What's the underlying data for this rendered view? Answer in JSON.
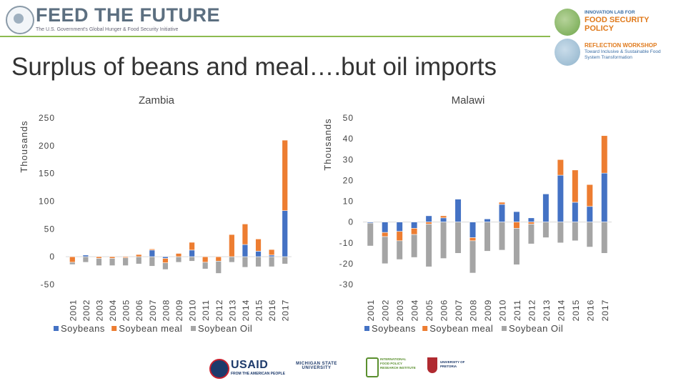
{
  "header": {
    "ftf_brand": "FEED THE FUTURE",
    "ftf_tagline": "The U.S. Government's Global Hunger & Food Security Initiative",
    "lab_line1": "INNOVATION LAB FOR",
    "lab_line2": "FOOD SECURITY POLICY",
    "lab_line3": "REFLECTION WORKSHOP",
    "lab_line4": "Toward Inclusive & Sustainable Food System Transformation"
  },
  "slide": {
    "title": "Surplus of beans and meal….but oil imports"
  },
  "colors": {
    "soybeans": "#4472C4",
    "soybean_meal": "#ED7D31",
    "soybean_oil": "#A5A5A5",
    "accent_green": "#8DBB50"
  },
  "chart_data": [
    {
      "type": "bar",
      "stacked": true,
      "title": "Zambia",
      "ylabel": "Thousands",
      "xlabel": "",
      "ylim": [
        -50,
        250
      ],
      "yticks": [
        -50,
        0,
        50,
        100,
        150,
        200,
        250
      ],
      "categories": [
        "2001",
        "2002",
        "2003",
        "2004",
        "2005",
        "2006",
        "2007",
        "2008",
        "2009",
        "2010",
        "2011",
        "2012",
        "2013",
        "2014",
        "2015",
        "2016",
        "2017"
      ],
      "series": [
        {
          "name": "Soybeans",
          "values": [
            0,
            3,
            0,
            0,
            0,
            0,
            12,
            -3,
            0,
            12,
            0,
            0,
            0,
            22,
            10,
            3,
            83
          ]
        },
        {
          "name": "Soybean meal",
          "values": [
            -10,
            0,
            -3,
            -3,
            -2,
            4,
            2,
            -8,
            6,
            14,
            -10,
            -8,
            40,
            37,
            22,
            10,
            127
          ]
        },
        {
          "name": "Soybean Oil",
          "values": [
            -4,
            -10,
            -13,
            -13,
            -14,
            -13,
            -17,
            -12,
            -10,
            -8,
            -12,
            -22,
            -10,
            -19,
            -18,
            -18,
            -13
          ]
        }
      ],
      "legend": "bottom",
      "grid": false
    },
    {
      "type": "bar",
      "stacked": true,
      "title": "Malawi",
      "ylabel": "Thousands",
      "xlabel": "",
      "ylim": [
        -30,
        50
      ],
      "yticks": [
        -30,
        -20,
        -10,
        0,
        10,
        20,
        30,
        40,
        50
      ],
      "categories": [
        "2001",
        "2002",
        "2003",
        "2004",
        "2005",
        "2006",
        "2007",
        "2008",
        "2009",
        "2010",
        "2011",
        "2012",
        "2013",
        "2014",
        "2015",
        "2016",
        "2017"
      ],
      "series": [
        {
          "name": "Soybeans",
          "values": [
            -0.5,
            -5,
            -4.5,
            -3,
            3,
            2,
            11,
            -7.5,
            1.5,
            8.5,
            5,
            2,
            13.5,
            22.5,
            9.5,
            7.5,
            23.5
          ]
        },
        {
          "name": "Soybean meal",
          "values": [
            0,
            -2,
            -4.5,
            -3,
            -1,
            1,
            0,
            -1.5,
            0,
            1,
            -3,
            -1,
            0,
            7.5,
            15.5,
            10.5,
            18
          ]
        },
        {
          "name": "Soybean Oil",
          "values": [
            -11,
            -13,
            -9,
            -11,
            -20.5,
            -17.5,
            -15,
            -15.5,
            -14,
            -13.5,
            -17.5,
            -9.5,
            -7.5,
            -10,
            -9,
            -12,
            -15
          ]
        }
      ],
      "legend": "bottom",
      "grid": false
    }
  ],
  "footer": {
    "usaid": "USAID",
    "usaid_sub": "FROM THE AMERICAN PEOPLE",
    "msu": "MICHIGAN STATE UNIVERSITY",
    "ifpri": "INTERNATIONAL FOOD POLICY RESEARCH INSTITUTE",
    "ifpri_abbr": "IFPRI",
    "up": "UNIVERSITY OF PRETORIA"
  }
}
